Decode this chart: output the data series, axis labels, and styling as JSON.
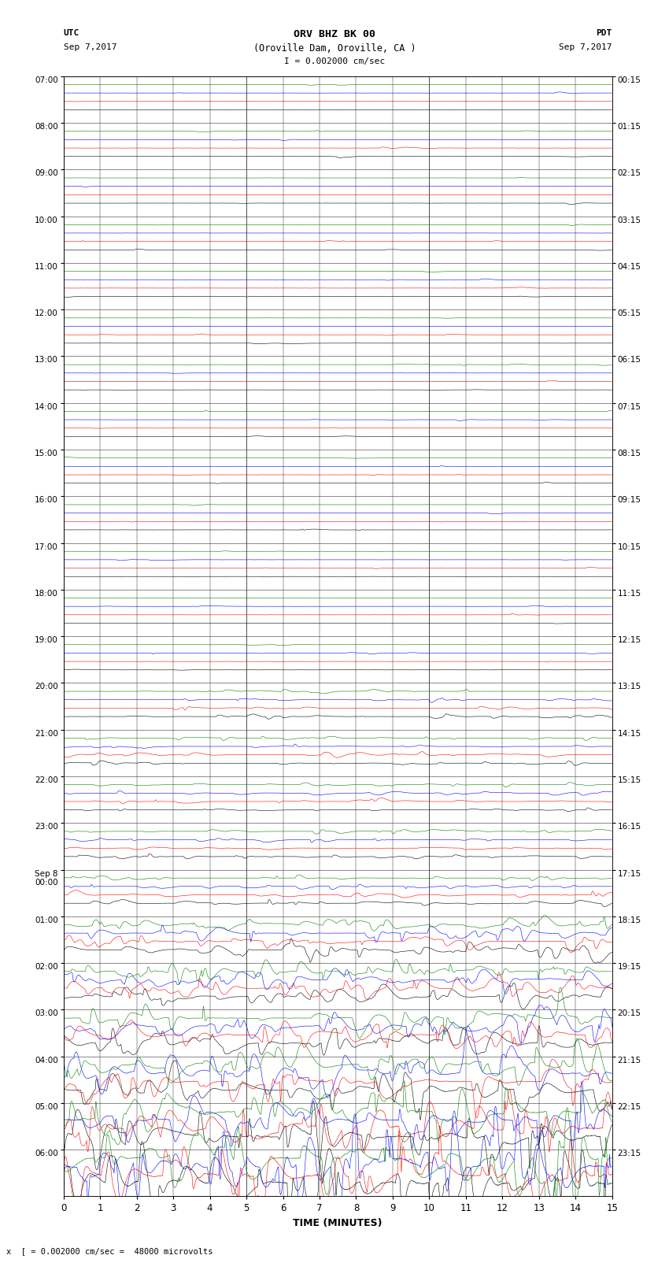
{
  "title_line1": "ORV BHZ BK 00",
  "title_line2": "(Oroville Dam, Oroville, CA )",
  "scale_label": "I = 0.002000 cm/sec",
  "footer_label": "x  [ = 0.002000 cm/sec =  48000 microvolts",
  "utc_label": "UTC",
  "utc_date": "Sep 7,2017",
  "pdt_label": "PDT",
  "pdt_date": "Sep 7,2017",
  "xlabel": "TIME (MINUTES)",
  "left_times": [
    "07:00",
    "08:00",
    "09:00",
    "10:00",
    "11:00",
    "12:00",
    "13:00",
    "14:00",
    "15:00",
    "16:00",
    "17:00",
    "18:00",
    "19:00",
    "20:00",
    "21:00",
    "22:00",
    "23:00",
    "Sep 8\n00:00",
    "01:00",
    "02:00",
    "03:00",
    "04:00",
    "05:00",
    "06:00"
  ],
  "right_times": [
    "00:15",
    "01:15",
    "02:15",
    "03:15",
    "04:15",
    "05:15",
    "06:15",
    "07:15",
    "08:15",
    "09:15",
    "10:15",
    "11:15",
    "12:15",
    "13:15",
    "14:15",
    "15:15",
    "16:15",
    "17:15",
    "18:15",
    "19:15",
    "20:15",
    "21:15",
    "22:15",
    "23:15"
  ],
  "num_rows": 24,
  "minutes_per_row": 15,
  "bg_color": "#ffffff",
  "grid_color": "#000000",
  "trace_colors": [
    "#000000",
    "#ff0000",
    "#0000ff",
    "#008000"
  ],
  "seed": 42
}
